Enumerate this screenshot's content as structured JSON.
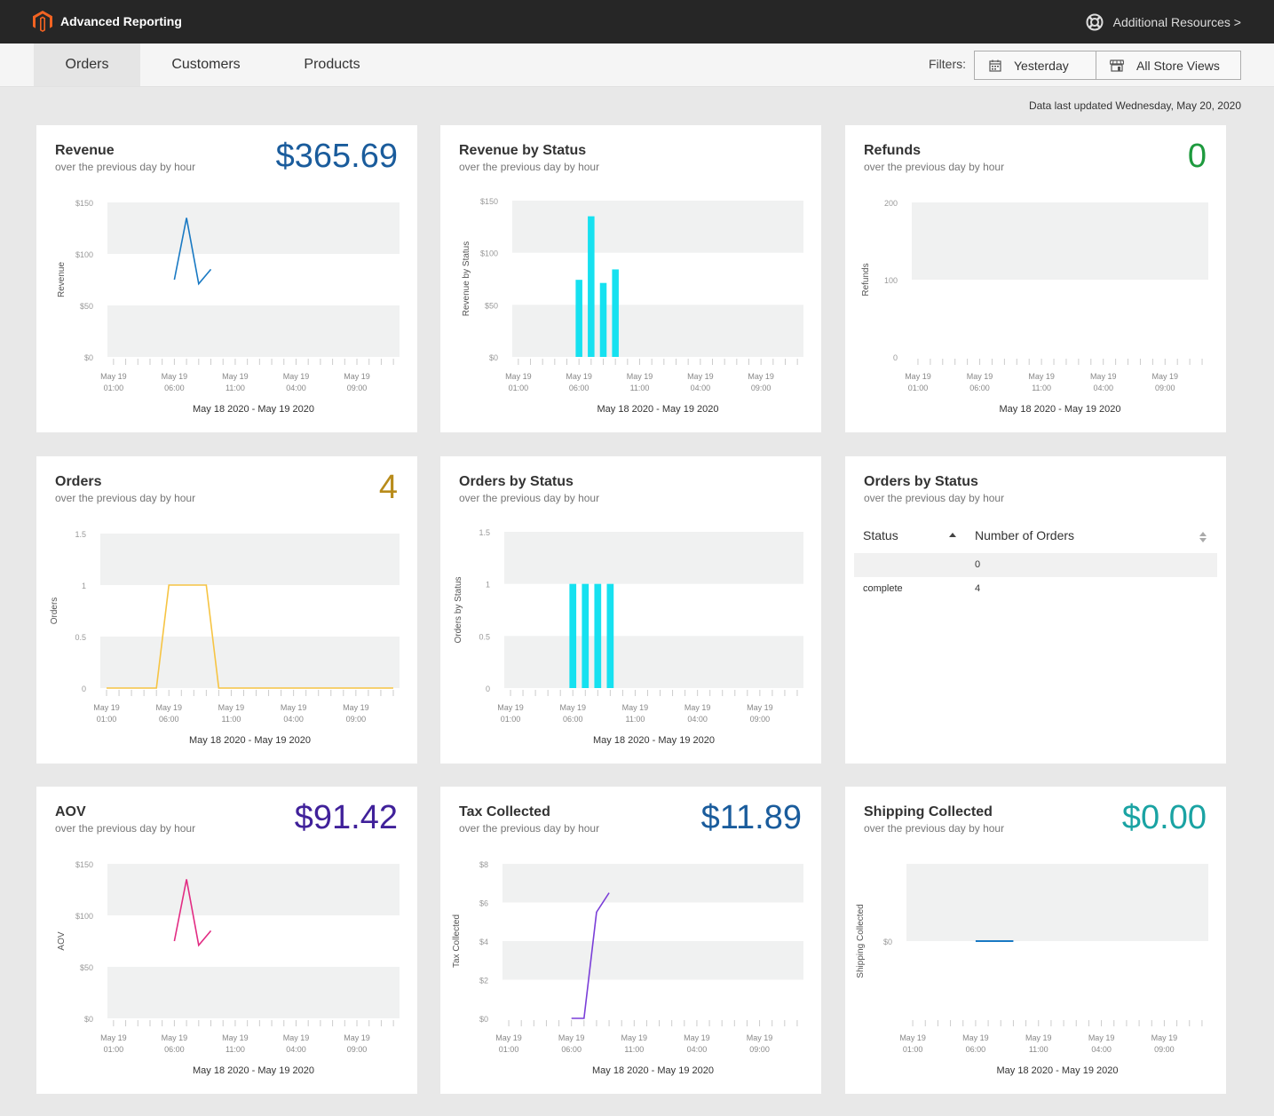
{
  "header": {
    "app_title": "Advanced Reporting",
    "resources_label": "Additional Resources >"
  },
  "nav": {
    "tabs": [
      {
        "label": "Orders",
        "active": true
      },
      {
        "label": "Customers",
        "active": false
      },
      {
        "label": "Products",
        "active": false
      }
    ],
    "filters_label": "Filters:",
    "date_filter": "Yesterday",
    "store_filter": "All Store Views"
  },
  "updated_text": "Data last updated Wednesday, May 20, 2020",
  "colors": {
    "topbar": "#262626",
    "logo": "#f26322",
    "revenue_value": "#1a5c9c",
    "refunds_value": "#1e9a3e",
    "orders_value": "#b88b1a",
    "aov_value": "#40219a",
    "tax_value": "#1a5c9c",
    "shipping_value": "#1aa3a3"
  },
  "x_ticks": [
    {
      "line1": "May 19",
      "line2": "01:00"
    },
    {
      "line1": "May 19",
      "line2": "06:00"
    },
    {
      "line1": "May 19",
      "line2": "11:00"
    },
    {
      "line1": "May 19",
      "line2": "04:00"
    },
    {
      "line1": "May 19",
      "line2": "09:00"
    }
  ],
  "date_range": "May 18 2020 - May 19 2020",
  "cards": {
    "revenue": {
      "title": "Revenue",
      "subtitle": "over the previous day by hour",
      "value": "$365.69"
    },
    "revenue_status": {
      "title": "Revenue by Status",
      "subtitle": "over the previous day by hour"
    },
    "refunds": {
      "title": "Refunds",
      "subtitle": "over the previous day by hour",
      "value": "0"
    },
    "orders": {
      "title": "Orders",
      "subtitle": "over the previous day by hour",
      "value": "4"
    },
    "orders_status": {
      "title": "Orders by Status",
      "subtitle": "over the previous day by hour"
    },
    "orders_table": {
      "title": "Orders by Status",
      "subtitle": "over the previous day by hour",
      "columns": [
        "Status",
        "Number of Orders"
      ],
      "rows": [
        {
          "status": "",
          "count": "0"
        },
        {
          "status": "complete",
          "count": "4"
        }
      ]
    },
    "aov": {
      "title": "AOV",
      "subtitle": "over the previous day by hour",
      "value": "$91.42"
    },
    "tax": {
      "title": "Tax Collected",
      "subtitle": "over the previous day by hour",
      "value": "$11.89"
    },
    "shipping": {
      "title": "Shipping Collected",
      "subtitle": "over the previous day by hour",
      "value": "$0.00"
    }
  },
  "chart_data": [
    {
      "id": "revenue",
      "type": "line",
      "ylabel": "Revenue",
      "yticks": [
        "$0",
        "$50",
        "$100",
        "$150"
      ],
      "ylim": [
        0,
        150
      ],
      "color": "#1979c3",
      "x": [
        5,
        6,
        7,
        8
      ],
      "values": [
        75,
        135,
        71,
        85
      ],
      "xlabel": "May 18 2020 - May 19 2020"
    },
    {
      "id": "revenue_status",
      "type": "bar",
      "ylabel": "Revenue by Status",
      "yticks": [
        "$0",
        "$50",
        "$100",
        "$150"
      ],
      "ylim": [
        0,
        150
      ],
      "color": "#16e1f0",
      "x": [
        5,
        6,
        7,
        8
      ],
      "values": [
        74,
        135,
        71,
        84
      ],
      "xlabel": "May 18 2020 - May 19 2020"
    },
    {
      "id": "refunds",
      "type": "line",
      "ylabel": "Refunds",
      "yticks": [
        "0",
        "100",
        "200"
      ],
      "ylim": [
        0,
        200
      ],
      "color": "#1979c3",
      "x": [],
      "values": [],
      "xlabel": "May 18 2020 - May 19 2020"
    },
    {
      "id": "orders",
      "type": "line",
      "ylabel": "Orders",
      "yticks": [
        "0",
        "0.5",
        "1",
        "1.5"
      ],
      "ylim": [
        0,
        1.5
      ],
      "color": "#f6c443",
      "x": [
        0,
        1,
        2,
        3,
        4,
        5,
        6,
        7,
        8,
        9,
        10,
        11,
        12,
        13,
        14,
        15,
        16,
        17,
        18,
        19,
        20,
        21,
        22,
        23
      ],
      "values": [
        0,
        0,
        0,
        0,
        0,
        1,
        1,
        1,
        1,
        0,
        0,
        0,
        0,
        0,
        0,
        0,
        0,
        0,
        0,
        0,
        0,
        0,
        0,
        0
      ],
      "xlabel": "May 18 2020 - May 19 2020"
    },
    {
      "id": "orders_status",
      "type": "bar",
      "ylabel": "Orders by Status",
      "yticks": [
        "0",
        "0.5",
        "1",
        "1.5"
      ],
      "ylim": [
        0,
        1.5
      ],
      "color": "#16e1f0",
      "x": [
        5,
        6,
        7,
        8
      ],
      "values": [
        1,
        1,
        1,
        1
      ],
      "xlabel": "May 18 2020 - May 19 2020"
    },
    {
      "id": "aov",
      "type": "line",
      "ylabel": "AOV",
      "yticks": [
        "$0",
        "$50",
        "$100",
        "$150"
      ],
      "ylim": [
        0,
        150
      ],
      "color": "#e22c83",
      "x": [
        5,
        6,
        7,
        8
      ],
      "values": [
        75,
        135,
        71,
        85
      ],
      "xlabel": "May 18 2020 - May 19 2020"
    },
    {
      "id": "tax",
      "type": "line",
      "ylabel": "Tax Collected",
      "yticks": [
        "$0",
        "$2",
        "$4",
        "$6",
        "$8"
      ],
      "ylim": [
        0,
        8
      ],
      "color": "#7a3ed8",
      "x": [
        5,
        6,
        7,
        8
      ],
      "values": [
        0,
        0,
        5.5,
        6.5
      ],
      "xlabel": "May 18 2020 - May 19 2020"
    },
    {
      "id": "shipping",
      "type": "line",
      "ylabel": "Shipping Collected",
      "yticks": [
        "$0"
      ],
      "ylim": [
        -1,
        1
      ],
      "color": "#1979c3",
      "x": [
        5,
        6,
        7,
        8
      ],
      "values": [
        0,
        0,
        0,
        0
      ],
      "xlabel": "May 18 2020 - May 19 2020"
    }
  ]
}
